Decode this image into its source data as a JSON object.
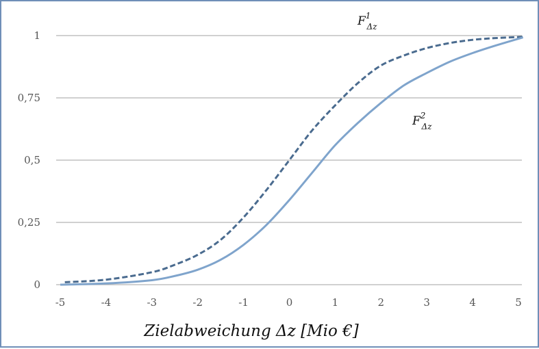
{
  "chart_data": {
    "type": "line",
    "xlabel": "Zielabweichung Δz [Mio €]",
    "xlim": [
      -5,
      5
    ],
    "ylim": [
      0,
      1
    ],
    "x_ticks": [
      "-5",
      "-4",
      "-3",
      "-2",
      "-1",
      "0",
      "1",
      "2",
      "3",
      "4",
      "5"
    ],
    "y_ticks": [
      "0",
      "0,25",
      "0,5",
      "0,75",
      "1"
    ],
    "grid": "horizontal",
    "series": [
      {
        "name": "F1",
        "label": {
          "main": "F",
          "sup": "1",
          "sub": "Δz"
        },
        "style": "dashed",
        "color": "#4a6b8f",
        "x": [
          -4.9,
          -4,
          -3,
          -2.5,
          -2,
          -1.5,
          -1,
          -0.5,
          0,
          0.5,
          1,
          1.5,
          2,
          2.5,
          3,
          3.5,
          4,
          4.5,
          5.1
        ],
        "y": [
          0.01,
          0.02,
          0.05,
          0.08,
          0.12,
          0.18,
          0.27,
          0.38,
          0.5,
          0.62,
          0.72,
          0.81,
          0.88,
          0.92,
          0.95,
          0.97,
          0.983,
          0.99,
          0.995
        ]
      },
      {
        "name": "F2",
        "label": {
          "main": "F",
          "sup": "2",
          "sub": "Δz"
        },
        "style": "solid",
        "color": "#7fa4cc",
        "x": [
          -5,
          -4,
          -3,
          -2.5,
          -2,
          -1.5,
          -1,
          -0.5,
          0,
          0.5,
          1,
          1.5,
          2,
          2.5,
          3,
          3.5,
          4,
          4.5,
          5.1
        ],
        "y": [
          0.0,
          0.005,
          0.018,
          0.035,
          0.06,
          0.1,
          0.16,
          0.24,
          0.34,
          0.45,
          0.56,
          0.65,
          0.73,
          0.8,
          0.85,
          0.895,
          0.93,
          0.96,
          0.993
        ]
      }
    ]
  }
}
